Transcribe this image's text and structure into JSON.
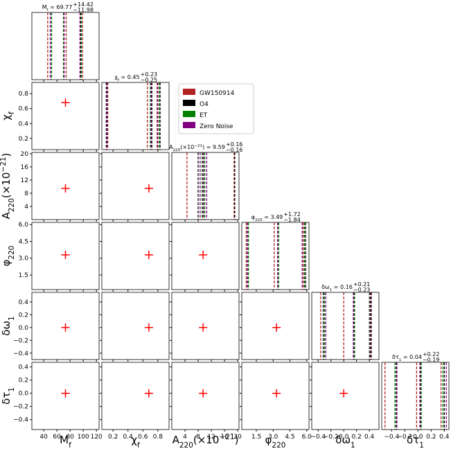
{
  "chart_data": {
    "type": "corner",
    "params": [
      {
        "label": [
          {
            "text": "M"
          },
          {
            "sub": "f"
          }
        ],
        "lim": [
          22,
          124
        ],
        "truth": 73,
        "ticks": [
          40,
          60,
          80,
          100,
          120
        ],
        "title": {
          "parts": [
            {
              "text": "M"
            },
            {
              "sub": "f"
            },
            {
              "text": " = 69.77"
            }
          ],
          "upper": "+14.42",
          "lower": "−11.98"
        }
      },
      {
        "label": [
          {
            "text": "χ"
          },
          {
            "sub": "f"
          }
        ],
        "lim": [
          0.05,
          0.95
        ],
        "truth": 0.68,
        "ticks": [
          0.2,
          0.4,
          0.6,
          0.8
        ],
        "title": {
          "parts": [
            {
              "text": "χ"
            },
            {
              "sub": "f"
            },
            {
              "text": " = 0.45"
            }
          ],
          "upper": "+0.23",
          "lower": "−0.25"
        }
      },
      {
        "label": [
          {
            "text": "A"
          },
          {
            "sub": "220"
          },
          {
            "text": "(×10"
          },
          {
            "sup": "−21"
          },
          {
            "text": ")"
          }
        ],
        "lim": [
          0,
          20.4
        ],
        "truth": 9.5,
        "ticks": [
          4,
          8,
          12,
          16,
          20
        ],
        "title": {
          "parts": [
            {
              "text": "A"
            },
            {
              "sub": "220"
            },
            {
              "text": "(×10"
            },
            {
              "sup": "−21"
            },
            {
              "text": ") = 9.59"
            }
          ],
          "upper": "+0.16",
          "lower": "−0.16"
        }
      },
      {
        "label": [
          {
            "text": "φ"
          },
          {
            "sub": "220"
          }
        ],
        "lim": [
          0.2,
          6.2
        ],
        "truth": 3.3,
        "ticks": [
          1.5,
          {
            "value": 3,
            "label": "3.0"
          },
          4.5,
          {
            "value": 6,
            "label": "6.0"
          }
        ],
        "title": {
          "parts": [
            {
              "text": "φ"
            },
            {
              "sub": "220"
            },
            {
              "text": " = 3.49"
            }
          ],
          "upper": "+1.72",
          "lower": "−1.84"
        }
      },
      {
        "label": [
          {
            "text": "δω"
          },
          {
            "sub": "1"
          }
        ],
        "lim": [
          -0.5,
          0.55
        ],
        "truth": 0,
        "ticks": [
          {
            "value": -0.4,
            "label": "−0.4"
          },
          {
            "value": -0.2,
            "label": "−0.2"
          },
          {
            "value": 0,
            "label": "0.0"
          },
          0.2,
          0.4
        ],
        "title": {
          "parts": [
            {
              "text": "δω"
            },
            {
              "sub": "1"
            },
            {
              "text": " = 0.16"
            }
          ],
          "upper": "+0.21",
          "lower": "−0.23"
        }
      },
      {
        "label": [
          {
            "text": "δτ"
          },
          {
            "sub": "1"
          }
        ],
        "lim": [
          -0.55,
          0.47
        ],
        "truth": 0,
        "ticks": [
          {
            "value": -0.4,
            "label": "−0.4"
          },
          {
            "value": -0.2,
            "label": "−0.2"
          },
          {
            "value": 0,
            "label": "0.0"
          },
          0.2,
          0.4
        ],
        "title": {
          "parts": [
            {
              "text": "δτ"
            },
            {
              "sub": "1"
            },
            {
              "text": " = 0.04"
            }
          ],
          "upper": "+0.22",
          "lower": "−0.19"
        }
      }
    ],
    "series": [
      {
        "name": "GW150914",
        "color": "#b22222",
        "quantiles": [
          [
            46,
            74,
            99
          ],
          [
            0.13,
            0.66,
            0.79
          ],
          [
            4.6,
            9.5,
            18.9
          ],
          [
            0.6,
            3.1,
            5.7
          ],
          [
            -0.36,
            0,
            0.42
          ],
          [
            -0.5,
            -0.02,
            0.35
          ]
        ]
      },
      {
        "name": "O4",
        "color": "#000000",
        "quantiles": [
          [
            50,
            70,
            96
          ],
          [
            0.11,
            0.72,
            0.83
          ],
          [
            8,
            9.6,
            19.1
          ],
          [
            0.7,
            3.4,
            5.9
          ],
          [
            -0.32,
            0.16,
            0.43
          ],
          [
            -0.33,
            0.04,
            0.4
          ]
        ]
      },
      {
        "name": "ET",
        "color": "#008000",
        "quantiles": [
          [
            52,
            70,
            97
          ],
          [
            0.12,
            0.7,
            0.82
          ],
          [
            9.2,
            9.6,
            10
          ],
          [
            0.8,
            3.5,
            5.8
          ],
          [
            -0.3,
            0.17,
            0.4
          ],
          [
            -0.35,
            0.05,
            0.38
          ]
        ]
      },
      {
        "name": "Zero Noise",
        "color": "#800080",
        "quantiles": [
          [
            50,
            71,
            95
          ],
          [
            0.12,
            0.71,
            0.8
          ],
          [
            8.6,
            9.6,
            10.6
          ],
          [
            0.7,
            3.4,
            5.6
          ],
          [
            -0.28,
            0.15,
            0.41
          ],
          [
            -0.32,
            0.03,
            0.43
          ]
        ]
      }
    ],
    "truth_color": "#ff0000",
    "legend": "upper right"
  }
}
